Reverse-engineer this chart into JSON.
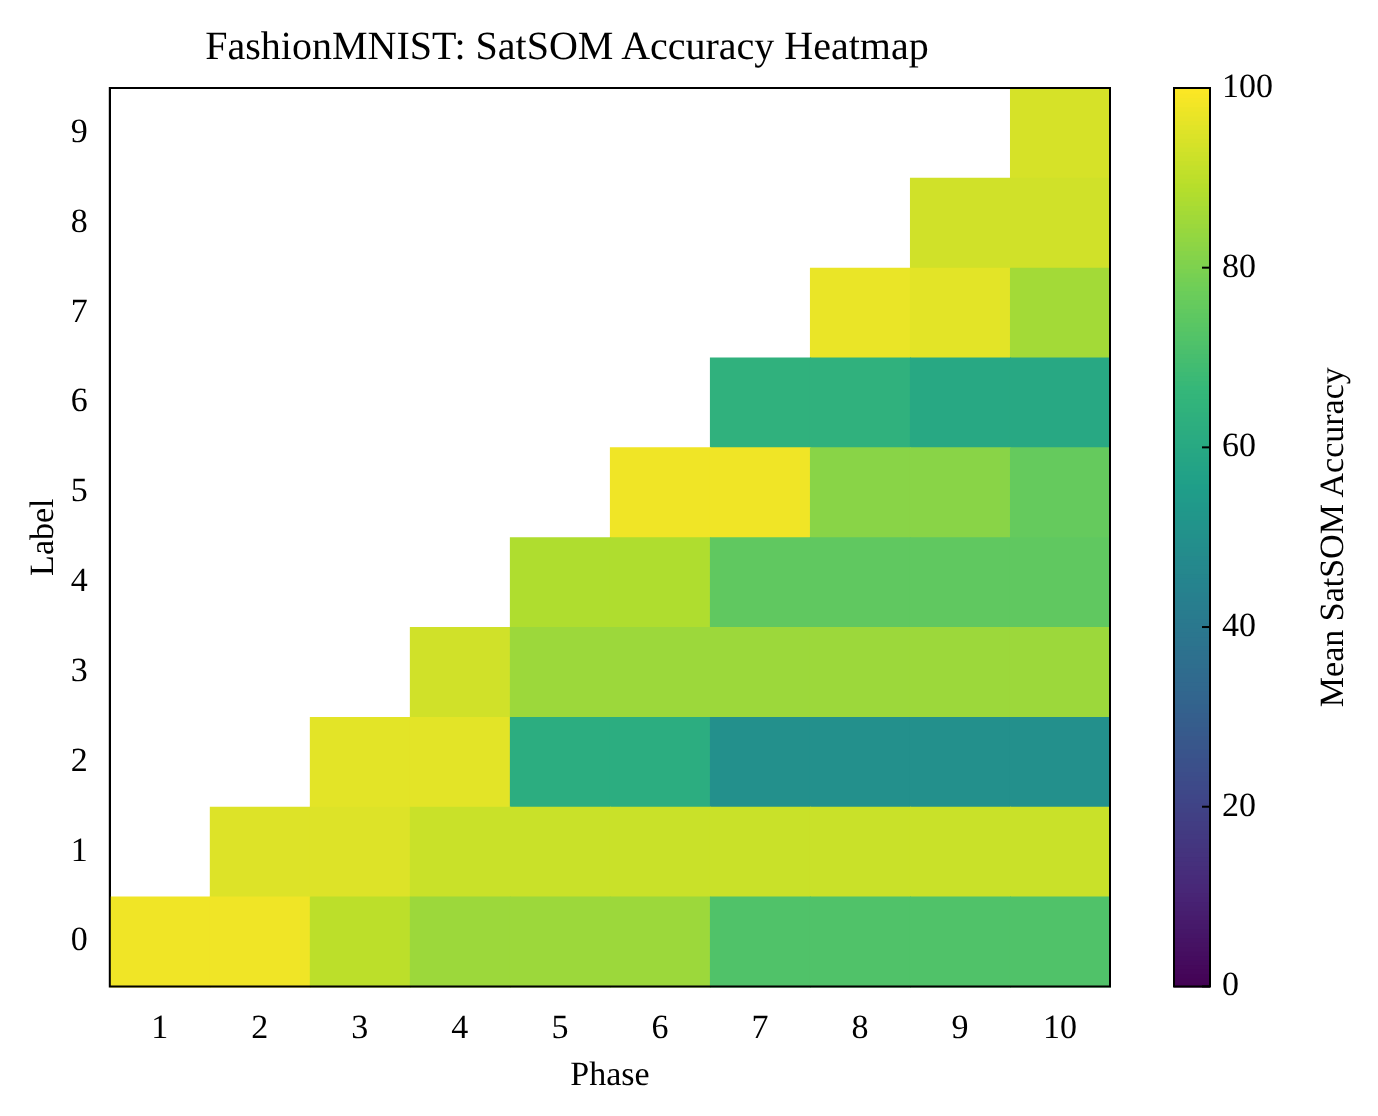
{
  "chart_data": {
    "type": "heatmap",
    "title": "FashionMNIST: SatSOM Accuracy Heatmap",
    "xlabel": "Phase",
    "ylabel": "Label",
    "clabel": "Mean SatSOM Accuracy",
    "categories": [
      "1",
      "2",
      "3",
      "4",
      "5",
      "6",
      "7",
      "8",
      "9",
      "10"
    ],
    "y_categories": [
      "9",
      "8",
      "7",
      "6",
      "5",
      "4",
      "3",
      "2",
      "1",
      "0"
    ],
    "cells": [
      [
        null,
        null,
        null,
        null,
        null,
        null,
        null,
        null,
        null,
        94
      ],
      [
        null,
        null,
        null,
        null,
        null,
        null,
        null,
        null,
        93,
        93
      ],
      [
        null,
        null,
        null,
        null,
        null,
        null,
        null,
        97,
        96,
        86
      ],
      [
        null,
        null,
        null,
        null,
        null,
        null,
        64,
        64,
        60,
        60
      ],
      [
        null,
        null,
        null,
        null,
        null,
        98,
        98,
        82,
        82,
        76
      ],
      [
        null,
        null,
        null,
        null,
        88,
        88,
        75,
        75,
        75,
        75
      ],
      [
        null,
        null,
        null,
        93,
        85,
        85,
        85,
        85,
        85,
        85
      ],
      [
        null,
        null,
        96,
        96,
        62,
        62,
        50,
        50,
        50,
        50
      ],
      [
        null,
        95,
        95,
        92,
        92,
        92,
        92,
        92,
        92,
        92
      ],
      [
        98,
        98,
        90,
        85,
        85,
        85,
        72,
        72,
        72,
        72
      ]
    ],
    "clim": [
      0,
      100
    ],
    "cticks": [
      0,
      20,
      40,
      60,
      80,
      100
    ]
  }
}
